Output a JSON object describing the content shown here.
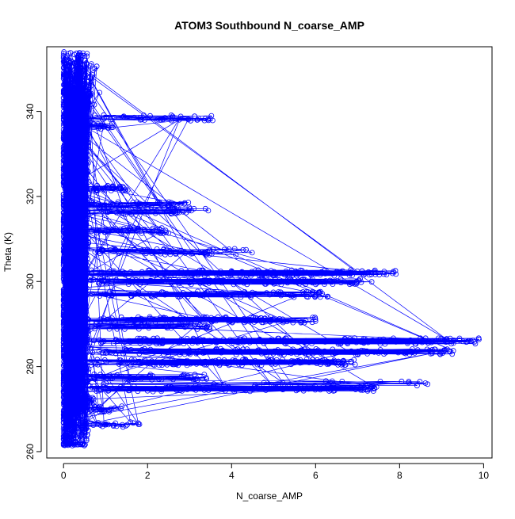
{
  "chart_data": {
    "type": "scatter",
    "title": "ATOM3 Southbound N_coarse_AMP",
    "xlabel": "N_coarse_AMP",
    "ylabel": "Theta (K)",
    "xlim": [
      -0.4,
      10.2
    ],
    "ylim": [
      258.5,
      355.2
    ],
    "x_ticks": [
      0,
      2,
      4,
      6,
      8,
      10
    ],
    "y_ticks": [
      260,
      280,
      300,
      320,
      340
    ],
    "grid": false,
    "legend": "none",
    "series_color": "#0000ff",
    "marker": "open-circle",
    "connect_points": true,
    "bands": [
      {
        "theta": 338.5,
        "x_max": 3.6,
        "count": 40
      },
      {
        "theta": 336.5,
        "x_max": 1.2,
        "count": 30
      },
      {
        "theta": 322.0,
        "x_max": 1.6,
        "count": 40
      },
      {
        "theta": 318.0,
        "x_max": 3.0,
        "count": 50
      },
      {
        "theta": 316.5,
        "x_max": 3.6,
        "count": 40
      },
      {
        "theta": 312.0,
        "x_max": 2.5,
        "count": 40
      },
      {
        "theta": 307.0,
        "x_max": 4.5,
        "count": 50
      },
      {
        "theta": 302.0,
        "x_max": 8.0,
        "count": 140
      },
      {
        "theta": 300.0,
        "x_max": 7.4,
        "count": 110
      },
      {
        "theta": 297.0,
        "x_max": 6.3,
        "count": 80
      },
      {
        "theta": 291.0,
        "x_max": 6.0,
        "count": 110
      },
      {
        "theta": 289.5,
        "x_max": 3.5,
        "count": 40
      },
      {
        "theta": 286.0,
        "x_max": 9.9,
        "count": 160
      },
      {
        "theta": 283.5,
        "x_max": 9.3,
        "count": 130
      },
      {
        "theta": 281.0,
        "x_max": 7.0,
        "count": 120
      },
      {
        "theta": 277.5,
        "x_max": 3.5,
        "count": 50
      },
      {
        "theta": 276.0,
        "x_max": 8.7,
        "count": 20
      },
      {
        "theta": 274.8,
        "x_max": 7.5,
        "count": 120
      },
      {
        "theta": 272.0,
        "x_max": 0.8,
        "count": 25
      },
      {
        "theta": 270.0,
        "x_max": 1.4,
        "count": 25
      },
      {
        "theta": 266.5,
        "x_max": 1.9,
        "count": 25
      },
      {
        "theta": 262.0,
        "x_max": 0.5,
        "count": 20
      }
    ],
    "core": {
      "x_range": [
        0,
        0.6
      ],
      "theta_range": [
        261.5,
        354.0
      ],
      "count": 1600
    }
  }
}
